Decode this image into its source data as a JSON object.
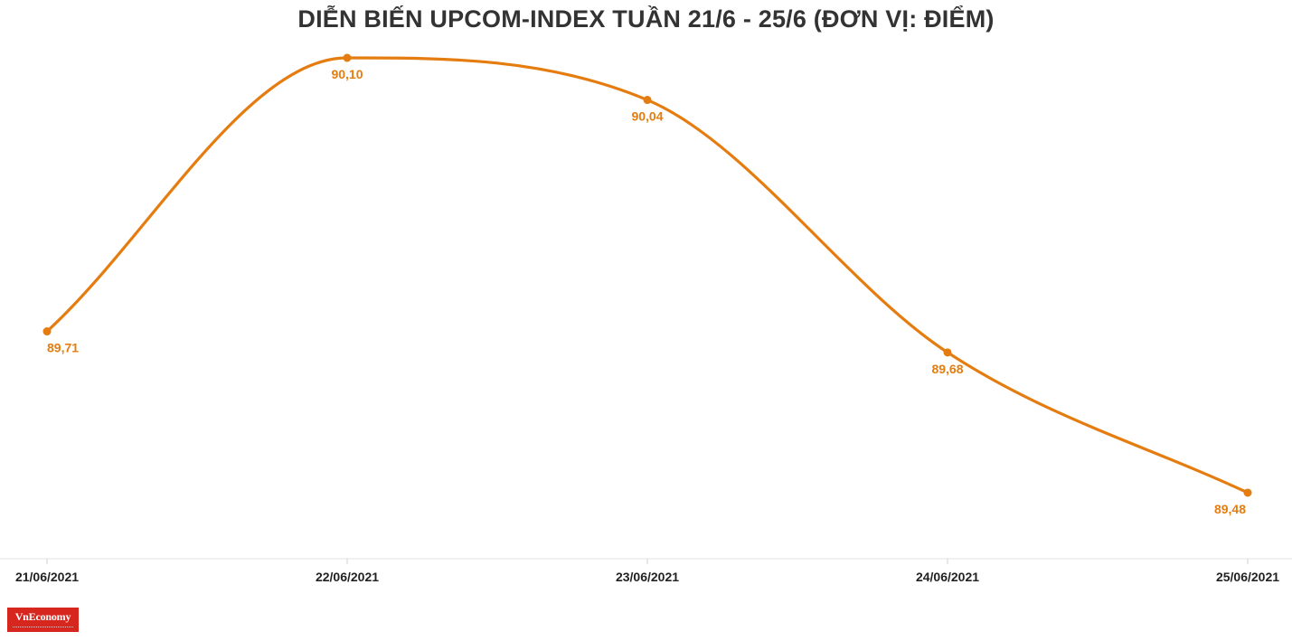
{
  "chart_data": {
    "type": "line",
    "title": "DIỄN BIẾN UPCOM-INDEX TUẦN 21/6 - 25/6 (ĐƠN VỊ: ĐIỂM)",
    "xlabel": "",
    "ylabel": "",
    "categories": [
      "21/06/2021",
      "22/06/2021",
      "23/06/2021",
      "24/06/2021",
      "25/06/2021"
    ],
    "series": [
      {
        "values": [
          89.71,
          90.1,
          90.04,
          89.68,
          89.48
        ],
        "labels": [
          "89,71",
          "90,10",
          "90,04",
          "89,68",
          "89,48"
        ]
      }
    ],
    "ylim": [
      89.44,
      90.1
    ],
    "grid": false,
    "smooth": true,
    "color": "#e57c0f"
  },
  "logo": {
    "text": "VnEconomy",
    "color": "#d7261e"
  }
}
